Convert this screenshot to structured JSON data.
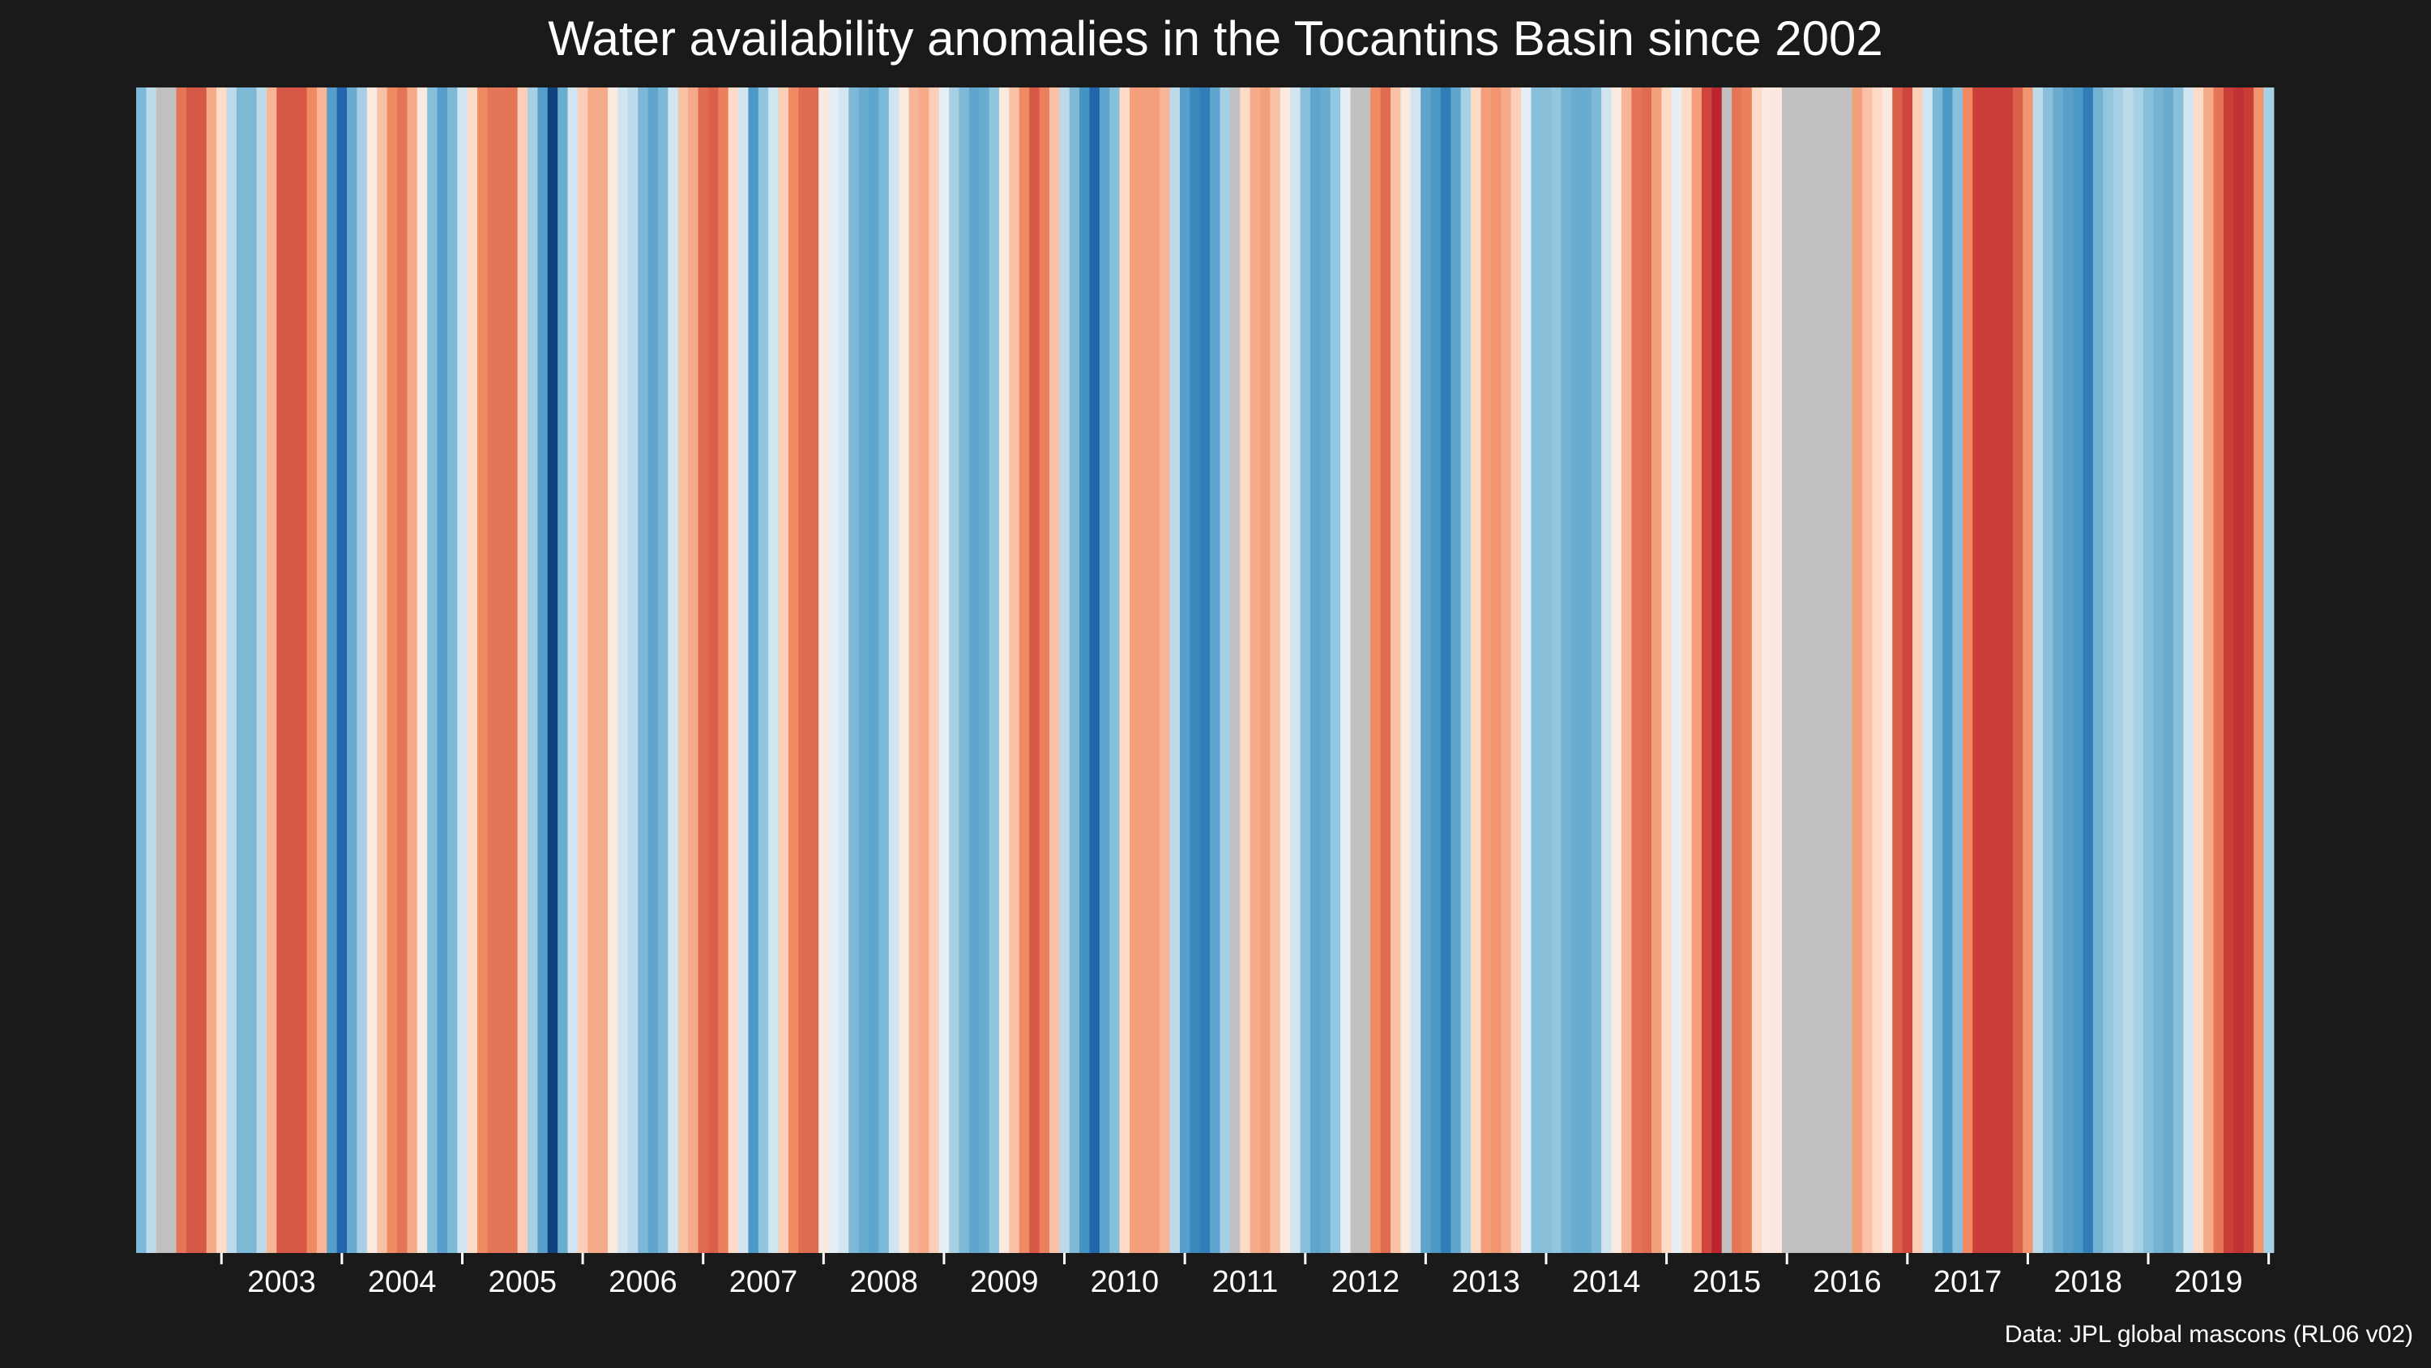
{
  "chart_data": {
    "type": "heatmap",
    "title": "Water availability anomalies in the Tocantins Basin since 2002",
    "caption": "Data: JPL global mascons (RL06 v02)",
    "xlabel": "",
    "ylabel": "",
    "x_range": [
      "2002-04",
      "2020-03"
    ],
    "tick_labels": [
      "2003",
      "2004",
      "2005",
      "2006",
      "2007",
      "2008",
      "2009",
      "2010",
      "2011",
      "2012",
      "2013",
      "2014",
      "2015",
      "2016",
      "2017",
      "2018",
      "2019"
    ],
    "value_scale": {
      "min": -1,
      "max": 1,
      "missing_color": "#c0c0c0",
      "colormap": "RdBu"
    },
    "months": [
      "2002-04",
      "2002-05",
      "2002-06",
      "2002-07",
      "2002-08",
      "2002-09",
      "2002-10",
      "2002-11",
      "2002-12",
      "2003-01",
      "2003-02",
      "2003-03",
      "2003-04",
      "2003-05",
      "2003-06",
      "2003-07",
      "2003-08",
      "2003-09",
      "2003-10",
      "2003-11",
      "2003-12",
      "2004-01",
      "2004-02",
      "2004-03",
      "2004-04",
      "2004-05",
      "2004-06",
      "2004-07",
      "2004-08",
      "2004-09",
      "2004-10",
      "2004-11",
      "2004-12",
      "2005-01",
      "2005-02",
      "2005-03",
      "2005-04",
      "2005-05",
      "2005-06",
      "2005-07",
      "2005-08",
      "2005-09",
      "2005-10",
      "2005-11",
      "2005-12",
      "2006-01",
      "2006-02",
      "2006-03",
      "2006-04",
      "2006-05",
      "2006-06",
      "2006-07",
      "2006-08",
      "2006-09",
      "2006-10",
      "2006-11",
      "2006-12",
      "2007-01",
      "2007-02",
      "2007-03",
      "2007-04",
      "2007-05",
      "2007-06",
      "2007-07",
      "2007-08",
      "2007-09",
      "2007-10",
      "2007-11",
      "2007-12",
      "2008-01",
      "2008-02",
      "2008-03",
      "2008-04",
      "2008-05",
      "2008-06",
      "2008-07",
      "2008-08",
      "2008-09",
      "2008-10",
      "2008-11",
      "2008-12",
      "2009-01",
      "2009-02",
      "2009-03",
      "2009-04",
      "2009-05",
      "2009-06",
      "2009-07",
      "2009-08",
      "2009-09",
      "2009-10",
      "2009-11",
      "2009-12",
      "2010-01",
      "2010-02",
      "2010-03",
      "2010-04",
      "2010-05",
      "2010-06",
      "2010-07",
      "2010-08",
      "2010-09",
      "2010-10",
      "2010-11",
      "2010-12",
      "2011-01",
      "2011-02",
      "2011-03",
      "2011-04",
      "2011-05",
      "2011-06",
      "2011-07",
      "2011-08",
      "2011-09",
      "2011-10",
      "2011-11",
      "2011-12",
      "2012-01",
      "2012-02",
      "2012-03",
      "2012-04",
      "2012-05",
      "2012-06",
      "2012-07",
      "2012-08",
      "2012-09",
      "2012-10",
      "2012-11",
      "2012-12",
      "2013-01",
      "2013-02",
      "2013-03",
      "2013-04",
      "2013-05",
      "2013-06",
      "2013-07",
      "2013-08",
      "2013-09",
      "2013-10",
      "2013-11",
      "2013-12",
      "2014-01",
      "2014-02",
      "2014-03",
      "2014-04",
      "2014-05",
      "2014-06",
      "2014-07",
      "2014-08",
      "2014-09",
      "2014-10",
      "2014-11",
      "2014-12",
      "2015-01",
      "2015-02",
      "2015-03",
      "2015-04",
      "2015-05",
      "2015-06",
      "2015-07",
      "2015-08",
      "2015-09",
      "2015-10",
      "2015-11",
      "2015-12",
      "2016-01",
      "2016-02",
      "2016-03",
      "2016-04",
      "2016-05",
      "2016-06",
      "2016-07",
      "2016-08",
      "2016-09",
      "2016-10",
      "2016-11",
      "2016-12",
      "2017-01",
      "2017-02",
      "2017-03",
      "2017-04",
      "2017-05",
      "2017-06",
      "2017-07",
      "2017-08",
      "2017-09",
      "2017-10",
      "2017-11",
      "2017-12",
      "2018-01",
      "2018-02",
      "2018-03",
      "2018-04",
      "2018-05",
      "2018-06",
      "2018-07",
      "2018-08",
      "2018-09",
      "2018-10",
      "2018-11",
      "2018-12",
      "2019-01",
      "2019-02",
      "2019-03",
      "2019-04",
      "2019-05",
      "2019-06",
      "2019-07",
      "2019-08",
      "2019-09",
      "2019-10",
      "2019-11",
      "2019-12",
      "2020-01",
      "2020-02",
      "2020-03"
    ],
    "values": [
      -0.35,
      -0.15,
      null,
      null,
      0.55,
      0.7,
      0.7,
      0.3,
      0.1,
      -0.15,
      -0.35,
      -0.35,
      -0.15,
      0.25,
      0.7,
      0.7,
      0.7,
      0.45,
      0.25,
      -0.55,
      -0.85,
      -0.45,
      -0.2,
      0.05,
      0.2,
      0.45,
      0.55,
      0.3,
      0.05,
      -0.3,
      -0.55,
      -0.35,
      -0.1,
      0.1,
      0.45,
      0.55,
      0.55,
      0.55,
      0.15,
      -0.2,
      -0.55,
      -0.95,
      -0.45,
      -0.1,
      0.15,
      0.3,
      0.3,
      0.05,
      -0.1,
      -0.15,
      -0.35,
      -0.5,
      -0.35,
      -0.1,
      0.2,
      0.3,
      0.6,
      0.65,
      0.5,
      0.1,
      -0.1,
      -0.6,
      -0.25,
      -0.1,
      0.15,
      0.45,
      0.6,
      0.6,
      0.05,
      -0.05,
      -0.1,
      -0.35,
      -0.45,
      -0.5,
      -0.35,
      -0.1,
      0.05,
      0.25,
      0.3,
      0.15,
      -0.05,
      -0.2,
      -0.35,
      -0.5,
      -0.45,
      -0.25,
      0.05,
      0.2,
      0.45,
      0.7,
      0.5,
      0.2,
      -0.15,
      -0.35,
      -0.65,
      -0.85,
      -0.5,
      -0.3,
      0.1,
      0.35,
      0.35,
      0.35,
      0.25,
      -0.15,
      -0.55,
      -0.7,
      -0.75,
      -0.5,
      -0.2,
      null,
      0.1,
      0.3,
      0.35,
      0.2,
      0.05,
      -0.1,
      -0.3,
      -0.5,
      -0.45,
      -0.25,
      -0.05,
      null,
      null,
      0.45,
      0.6,
      0.2,
      0.05,
      -0.1,
      -0.5,
      -0.6,
      -0.75,
      -0.5,
      -0.2,
      0.1,
      0.35,
      0.4,
      0.3,
      0.15,
      -0.05,
      -0.3,
      -0.3,
      -0.25,
      -0.4,
      -0.45,
      -0.45,
      -0.35,
      -0.1,
      0.05,
      0.25,
      0.55,
      0.6,
      0.35,
      0.1,
      -0.05,
      0.1,
      0.35,
      0.8,
      0.95,
      null,
      0.55,
      0.5,
      0.1,
      0.05,
      0.05,
      null,
      null,
      null,
      null,
      null,
      null,
      null,
      0.35,
      0.2,
      0.1,
      0.05,
      0.65,
      0.8,
      0.15,
      -0.1,
      -0.35,
      -0.6,
      -0.3,
      0.45,
      0.85,
      0.85,
      0.85,
      0.85,
      0.65,
      0.4,
      -0.15,
      -0.3,
      -0.45,
      -0.55,
      -0.6,
      -0.75,
      -0.4,
      -0.25,
      -0.2,
      -0.15,
      -0.2,
      -0.3,
      -0.4,
      -0.45,
      -0.3,
      -0.1,
      0.1,
      0.3,
      0.55,
      0.85,
      0.9,
      0.85,
      0.4,
      -0.2
    ]
  }
}
